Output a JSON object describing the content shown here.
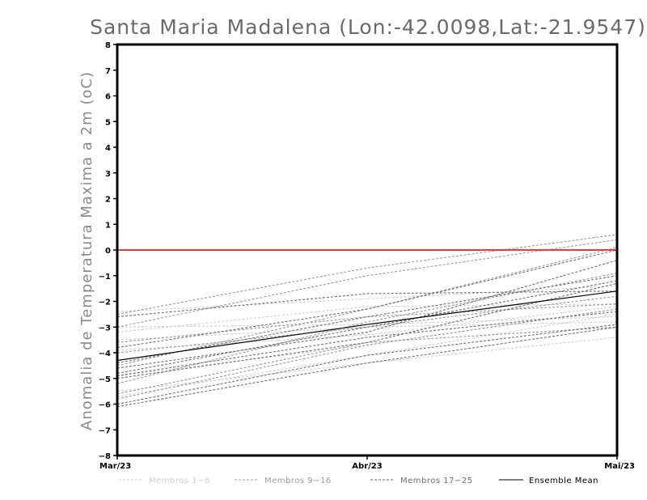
{
  "chart_data": {
    "type": "line",
    "title": "Santa Maria Madalena (Lon:-42.0098,Lat:-21.9547)",
    "ylabel": "Anomalia de Temperatura Maxima a 2m (oC)",
    "xlabel": "",
    "x": [
      "Mar/23",
      "Abr/23",
      "Mai/23"
    ],
    "ylim": [
      -8,
      8
    ],
    "yticks": [
      8,
      7,
      6,
      5,
      4,
      3,
      2,
      1,
      0,
      -1,
      -2,
      -3,
      -4,
      -5,
      -6,
      -7,
      -8
    ],
    "reference_line": 0,
    "reference_color": "#e8412f",
    "grid": false,
    "legend_position": "bottom",
    "legend": [
      "Membros 1-8",
      "Membros 9-16",
      "Membros 17-25",
      "Ensemble Mean"
    ],
    "groups": [
      {
        "legend_label": "Membros 1-8",
        "color": "#cfcfcf",
        "members": [
          [
            -2.4,
            -1.9,
            -1.4
          ],
          [
            -3.0,
            -2.9,
            -2.6
          ],
          [
            -3.5,
            -3.0,
            -2.8
          ],
          [
            -5.5,
            -4.4,
            -3.4
          ],
          [
            -4.9,
            -3.7,
            -2.3
          ],
          [
            -3.2,
            -2.2,
            -2.1
          ],
          [
            -5.7,
            -4.1,
            -2.5
          ],
          [
            -3.9,
            -3.3,
            -2.2
          ]
        ]
      },
      {
        "legend_label": "Membros 9-16",
        "color": "#9a9a9a",
        "members": [
          [
            -2.5,
            -0.7,
            0.6
          ],
          [
            -3.0,
            -1.0,
            0.4
          ],
          [
            -4.5,
            -2.3,
            0.1
          ],
          [
            -3.6,
            -2.6,
            -2.1
          ],
          [
            -5.2,
            -2.8,
            -0.9
          ],
          [
            -4.0,
            -3.0,
            -1.8
          ],
          [
            -5.8,
            -3.7,
            -2.3
          ],
          [
            -5.6,
            -3.6,
            -3.0
          ]
        ]
      },
      {
        "legend_label": "Membros 17-25",
        "color": "#6e6e6e",
        "members": [
          [
            -2.6,
            -1.7,
            -1.6
          ],
          [
            -3.8,
            -2.3,
            0.0
          ],
          [
            -4.6,
            -3.2,
            -0.4
          ],
          [
            -4.4,
            -2.6,
            -1.0
          ],
          [
            -4.8,
            -3.0,
            -1.2
          ],
          [
            -5.0,
            -3.6,
            -1.3
          ],
          [
            -4.9,
            -3.4,
            -2.4
          ],
          [
            -6.0,
            -4.1,
            -2.9
          ],
          [
            -6.1,
            -4.4,
            -3.0
          ]
        ]
      }
    ],
    "ensemble_mean": {
      "legend_label": "Ensemble Mean",
      "color": "#000000",
      "values": [
        -4.3,
        -2.9,
        -1.6
      ]
    }
  }
}
